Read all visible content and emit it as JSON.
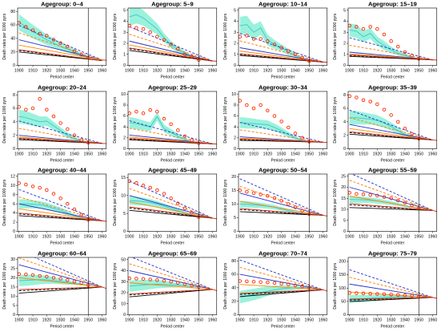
{
  "colors": {
    "band": "#9af2dc",
    "band_line": "#4cc9c9",
    "points": "#ff2a00",
    "solid_navy": "#2233cc",
    "dash_navy": "#2233cc",
    "solid_orange": "#ff8800",
    "dash_orange": "#ff7700",
    "solid_black": "#000000",
    "dash_black": "#000000",
    "solid_red": "#cc2200",
    "vline": "#000000"
  },
  "chart_data": {
    "type": "line",
    "xlabel": "Period center",
    "ylabel": "Death rates per 1000 pyrs",
    "x_ticks": [
      1900,
      1910,
      1920,
      1930,
      1940,
      1950,
      1960
    ],
    "xlim": [
      1899,
      1963
    ],
    "vline_x": 1950,
    "x": [
      1900,
      1905,
      1910,
      1915,
      1920,
      1925,
      1930,
      1935,
      1940,
      1945,
      1950,
      1955,
      1960,
      1963
    ],
    "panels": [
      {
        "title": "Agegroup:  0–4",
        "y_ticks": [
          0,
          20,
          40,
          60,
          80
        ],
        "ylim": [
          0,
          85
        ],
        "points": [
          63,
          57,
          52,
          47,
          44,
          38,
          33,
          28,
          21,
          16,
          11
        ],
        "band_center": [
          64,
          57,
          50,
          44,
          38,
          33,
          28,
          24,
          20,
          15,
          11
        ],
        "band_width": [
          12,
          11,
          10,
          9,
          8,
          7,
          6,
          5,
          4,
          3,
          1
        ],
        "extrap_solid": [
          [
            1900,
            38
          ],
          [
            1960,
            8
          ]
        ],
        "extrap_dashed": [
          [
            1900,
            22
          ],
          [
            1960,
            7
          ]
        ]
      },
      {
        "title": "Agegroup:  5–9",
        "y_ticks": [
          0,
          1,
          2,
          3,
          4,
          5
        ],
        "ylim": [
          0,
          5.2
        ],
        "points": [
          3.6,
          3.4,
          3.3,
          3.0,
          2.6,
          2.3,
          1.9,
          1.5,
          1.0,
          0.8,
          0.5
        ],
        "band_center": [
          4.4,
          4.6,
          4.3,
          3.8,
          3.3,
          2.5,
          1.9,
          1.4,
          1.1,
          0.8,
          0.5
        ],
        "band_width": [
          0.8,
          0.8,
          0.7,
          0.6,
          0.5,
          0.4,
          0.3,
          0.3,
          0.2,
          0.1,
          0.05
        ],
        "extrap_solid": [
          [
            1900,
            2.2
          ],
          [
            1960,
            0.4
          ]
        ],
        "extrap_dashed": [
          [
            1900,
            1.5
          ],
          [
            1960,
            0.4
          ]
        ]
      },
      {
        "title": "Agegroup:  10–14",
        "y_ticks": [
          0,
          1,
          2,
          3,
          4,
          5
        ],
        "ylim": [
          0,
          5.2
        ],
        "points": [
          2.6,
          2.7,
          2.4,
          2.4,
          2.2,
          1.9,
          1.6,
          1.3,
          1.0,
          0.7,
          0.4
        ],
        "band_center": [
          3.6,
          3.7,
          3.0,
          3.4,
          2.3,
          1.9,
          1.6,
          1.2,
          0.9,
          0.6,
          0.4
        ],
        "band_width": [
          0.8,
          0.8,
          0.7,
          0.6,
          0.5,
          0.4,
          0.3,
          0.3,
          0.2,
          0.1,
          0.05
        ],
        "extrap_solid": [
          [
            1900,
            1.6
          ],
          [
            1960,
            0.3
          ]
        ],
        "extrap_dashed": [
          [
            1900,
            1.0
          ],
          [
            1960,
            0.3
          ]
        ]
      },
      {
        "title": "Agegroup:  15–19",
        "y_ticks": [
          0,
          1,
          2,
          3,
          4,
          5
        ],
        "ylim": [
          0,
          5.2
        ],
        "points": [
          3.6,
          3.5,
          3.3,
          3.5,
          3.3,
          2.8,
          2.2,
          1.7,
          1.2,
          0.9,
          0.6
        ],
        "band_center": [
          3.2,
          3.1,
          2.6,
          2.9,
          2.2,
          1.8,
          1.4,
          1.1,
          0.9,
          0.7,
          0.6
        ],
        "band_width": [
          0.6,
          0.6,
          0.5,
          0.5,
          0.4,
          0.4,
          0.3,
          0.2,
          0.2,
          0.1,
          0.05
        ],
        "extrap_solid": [
          [
            1900,
            1.2
          ],
          [
            1960,
            0.5
          ]
        ],
        "extrap_dashed": [
          [
            1900,
            0.9
          ],
          [
            1960,
            0.5
          ]
        ]
      },
      {
        "title": "Agegroup:  20–24",
        "y_ticks": [
          0,
          2,
          4,
          6,
          8
        ],
        "ylim": [
          0,
          8.5
        ],
        "points": [
          6.2,
          5.8,
          6.0,
          7.4,
          5.8,
          4.8,
          3.8,
          2.9,
          2.0,
          1.3,
          0.9
        ],
        "band_center": [
          4.8,
          4.6,
          4.3,
          4.0,
          4.1,
          3.4,
          2.7,
          2.0,
          1.5,
          1.1,
          0.9
        ],
        "band_width": [
          1.0,
          1.0,
          0.9,
          0.8,
          0.7,
          0.6,
          0.5,
          0.4,
          0.3,
          0.2,
          0.1
        ],
        "extrap_solid": [
          [
            1900,
            2.0
          ],
          [
            1960,
            0.8
          ]
        ],
        "extrap_dashed": [
          [
            1900,
            1.5
          ],
          [
            1960,
            0.8
          ]
        ]
      },
      {
        "title": "Agegroup:  25–29",
        "y_ticks": [
          0,
          2,
          4,
          6,
          8,
          10
        ],
        "ylim": [
          0,
          10.5
        ],
        "points": [
          6.5,
          6.8,
          6.5,
          7.1,
          6.8,
          5.5,
          4.5,
          3.4,
          2.3,
          1.6,
          1.0
        ],
        "band_center": [
          4.8,
          4.6,
          4.3,
          4.0,
          5.9,
          3.7,
          3.0,
          2.3,
          1.7,
          1.2,
          1.0
        ],
        "band_width": [
          1.0,
          1.0,
          0.9,
          0.8,
          0.8,
          0.7,
          0.6,
          0.5,
          0.3,
          0.2,
          0.1
        ],
        "extrap_solid": [
          [
            1900,
            2.5
          ],
          [
            1960,
            0.9
          ]
        ],
        "extrap_dashed": [
          [
            1900,
            1.8
          ],
          [
            1960,
            0.9
          ]
        ]
      },
      {
        "title": "Agegroup:  30–34",
        "y_ticks": [
          0,
          2,
          4,
          6,
          8,
          10
        ],
        "ylim": [
          0,
          10.5
        ],
        "points": [
          8.8,
          8.0,
          7.4,
          8.0,
          7.0,
          6.0,
          5.0,
          3.9,
          2.8,
          2.0,
          1.3
        ],
        "band_center": [
          4.8,
          4.7,
          4.6,
          4.5,
          4.4,
          3.9,
          3.3,
          2.6,
          2.0,
          1.5,
          1.3
        ],
        "band_width": [
          1.0,
          1.0,
          0.9,
          0.8,
          0.8,
          0.7,
          0.6,
          0.5,
          0.3,
          0.2,
          0.1
        ],
        "extrap_solid": [
          [
            1900,
            2.2
          ],
          [
            1960,
            1.2
          ]
        ],
        "extrap_dashed": [
          [
            1900,
            1.7
          ],
          [
            1960,
            1.2
          ]
        ]
      },
      {
        "title": "Agegroup:  35–39",
        "y_ticks": [
          0,
          2,
          4,
          6,
          8
        ],
        "ylim": [
          0,
          8.5
        ],
        "points": [
          7.8,
          7.6,
          7.2,
          7.0,
          6.6,
          5.8,
          5.0,
          4.0,
          3.0,
          2.2,
          1.5
        ],
        "band_center": [
          4.6,
          4.6,
          4.5,
          4.4,
          4.2,
          3.8,
          3.3,
          2.7,
          2.1,
          1.7,
          1.5
        ],
        "band_width": [
          1.0,
          1.0,
          0.9,
          0.8,
          0.8,
          0.7,
          0.6,
          0.5,
          0.3,
          0.2,
          0.1
        ],
        "extrap_solid": [
          [
            1900,
            3.6
          ],
          [
            1960,
            1.3
          ]
        ],
        "extrap_dashed": [
          [
            1900,
            2.4
          ],
          [
            1960,
            1.3
          ]
        ]
      },
      {
        "title": "Agegroup:  40–44",
        "y_ticks": [
          0,
          2,
          4,
          6,
          8,
          10,
          12
        ],
        "ylim": [
          0,
          12.5
        ],
        "points": [
          10.5,
          10.2,
          9.8,
          9.5,
          9.0,
          8.2,
          7.2,
          6.0,
          4.8,
          3.6,
          2.5
        ],
        "band_center": [
          6.0,
          6.0,
          5.9,
          5.8,
          5.5,
          5.0,
          4.6,
          4.0,
          3.4,
          2.9,
          2.5
        ],
        "band_width": [
          1.0,
          1.0,
          0.9,
          0.8,
          0.8,
          0.7,
          0.6,
          0.5,
          0.3,
          0.2,
          0.1
        ],
        "extrap_solid": [
          [
            1900,
            6.0
          ],
          [
            1960,
            2.3
          ]
        ],
        "extrap_dashed": [
          [
            1900,
            3.8
          ],
          [
            1960,
            2.3
          ]
        ]
      },
      {
        "title": "Agegroup:  45–49",
        "y_ticks": [
          0,
          5,
          10,
          15
        ],
        "ylim": [
          0,
          16
        ],
        "points": [
          14.0,
          13.5,
          12.8,
          12.2,
          11.5,
          10.5,
          9.2,
          7.8,
          6.4,
          5.2,
          4.0
        ],
        "band_center": [
          8.6,
          8.5,
          8.3,
          8.0,
          7.6,
          7.0,
          6.4,
          5.8,
          5.1,
          4.5,
          4.0
        ],
        "band_width": [
          1.2,
          1.2,
          1.1,
          1.0,
          0.9,
          0.8,
          0.7,
          0.6,
          0.4,
          0.3,
          0.1
        ],
        "extrap_solid": [
          [
            1900,
            10.0
          ],
          [
            1960,
            3.7
          ]
        ],
        "extrap_dashed": [
          [
            1900,
            6.5
          ],
          [
            1960,
            3.7
          ]
        ]
      },
      {
        "title": "Agegroup:  50–54",
        "y_ticks": [
          0,
          5,
          10,
          15,
          20
        ],
        "ylim": [
          0,
          21
        ],
        "points": [
          15.0,
          14.5,
          14.0,
          13.5,
          13.0,
          12.2,
          11.2,
          10.0,
          8.8,
          7.5,
          6.3
        ],
        "band_center": [
          10.0,
          9.9,
          9.7,
          9.5,
          9.2,
          8.8,
          8.2,
          7.6,
          7.0,
          6.6,
          6.3
        ],
        "band_width": [
          1.2,
          1.2,
          1.1,
          1.0,
          0.9,
          0.8,
          0.7,
          0.6,
          0.4,
          0.3,
          0.1
        ],
        "extrap_solid": [
          [
            1900,
            14.0
          ],
          [
            1960,
            5.9
          ]
        ],
        "extrap_dashed": [
          [
            1900,
            8.0
          ],
          [
            1960,
            5.9
          ]
        ]
      },
      {
        "title": "Agegroup:  55–59",
        "y_ticks": [
          0,
          5,
          10,
          15,
          20,
          25
        ],
        "ylim": [
          0,
          26
        ],
        "points": [
          17.5,
          17.0,
          16.8,
          16.5,
          16.2,
          15.6,
          15.0,
          14.0,
          13.0,
          11.8,
          10.5
        ],
        "band_center": [
          14.5,
          14.4,
          14.3,
          14.1,
          13.8,
          13.3,
          12.8,
          12.2,
          11.5,
          11.0,
          10.5
        ],
        "band_width": [
          1.5,
          1.5,
          1.4,
          1.3,
          1.2,
          1.0,
          0.9,
          0.7,
          0.5,
          0.3,
          0.1
        ],
        "extrap_solid": [
          [
            1900,
            20.0
          ],
          [
            1960,
            9.5
          ]
        ],
        "extrap_dashed": [
          [
            1900,
            12.0
          ],
          [
            1960,
            9.5
          ]
        ]
      },
      {
        "title": "Agegroup:  60–64",
        "y_ticks": [
          0,
          5,
          10,
          15,
          20,
          25,
          30
        ],
        "ylim": [
          0,
          31
        ],
        "points": [
          22.0,
          21.8,
          21.5,
          21.0,
          20.6,
          20.0,
          19.5,
          18.8,
          18.0,
          17.2,
          16.0
        ],
        "band_center": [
          18.5,
          18.6,
          18.8,
          19.0,
          18.9,
          18.5,
          18.0,
          17.5,
          17.0,
          16.5,
          16.0
        ],
        "band_width": [
          3.0,
          3.0,
          2.8,
          2.5,
          2.2,
          1.8,
          1.5,
          1.2,
          0.8,
          0.5,
          0.2
        ],
        "extrap_solid": [
          [
            1900,
            27.0
          ],
          [
            1960,
            15.0
          ]
        ],
        "extrap_dashed": [
          [
            1900,
            13.0
          ],
          [
            1960,
            15.0
          ]
        ]
      },
      {
        "title": "Agegroup:  65–69",
        "y_ticks": [
          0,
          10,
          20,
          30,
          40,
          50
        ],
        "ylim": [
          0,
          52
        ],
        "points": [
          33.0,
          32.8,
          32.5,
          32.0,
          31.5,
          30.8,
          30.0,
          29.0,
          27.8,
          26.5,
          25.0
        ],
        "band_center": [
          26.0,
          26.5,
          27.0,
          27.5,
          27.8,
          27.6,
          27.2,
          26.8,
          26.2,
          25.6,
          25.0
        ],
        "band_width": [
          5.0,
          5.0,
          4.6,
          4.2,
          3.8,
          3.2,
          2.6,
          2.0,
          1.4,
          0.8,
          0.2
        ],
        "extrap_solid": [
          [
            1900,
            40.0
          ],
          [
            1960,
            23.0
          ]
        ],
        "extrap_dashed": [
          [
            1900,
            18.0
          ],
          [
            1960,
            23.0
          ]
        ]
      },
      {
        "title": "Agegroup:  70–74",
        "y_ticks": [
          0,
          20,
          40,
          60,
          80
        ],
        "ylim": [
          0,
          85
        ],
        "points": [
          50.0,
          49.5,
          49.0,
          48.5,
          48.0,
          47.0,
          46.0,
          45.0,
          43.5,
          42.0,
          40.0
        ],
        "band_center": [
          26.0,
          28.0,
          30.0,
          32.5,
          35.0,
          37.0,
          38.5,
          39.5,
          40.0,
          40.0,
          40.0
        ],
        "band_width": [
          9.0,
          9.0,
          8.5,
          8.0,
          7.0,
          6.0,
          5.0,
          4.0,
          3.0,
          1.8,
          0.4
        ],
        "extrap_solid": [
          [
            1900,
            60.0
          ],
          [
            1960,
            37.0
          ]
        ],
        "extrap_dashed": [
          [
            1900,
            30.0
          ],
          [
            1960,
            37.0
          ]
        ]
      },
      {
        "title": "Agegroup:  75–79",
        "y_ticks": [
          0,
          50,
          100,
          150,
          200
        ],
        "ylim": [
          0,
          215
        ],
        "points": [
          82.0,
          81.0,
          80.0,
          79.0,
          78.0,
          77.0,
          76.0,
          74.5,
          73.0,
          71.0,
          68.0
        ],
        "band_center": [
          60.0,
          60.0,
          61.0,
          62.0,
          63.5,
          65.0,
          66.5,
          67.5,
          68.0,
          68.0,
          68.0
        ],
        "band_width": [
          14.0,
          14.0,
          13.0,
          12.0,
          11.0,
          10.0,
          8.5,
          7.0,
          5.0,
          3.0,
          0.6
        ],
        "extrap_solid": [
          [
            1900,
            115.0
          ],
          [
            1960,
            65.0
          ]
        ],
        "extrap_dashed": [
          [
            1900,
            55.0
          ],
          [
            1960,
            65.0
          ]
        ]
      }
    ]
  }
}
